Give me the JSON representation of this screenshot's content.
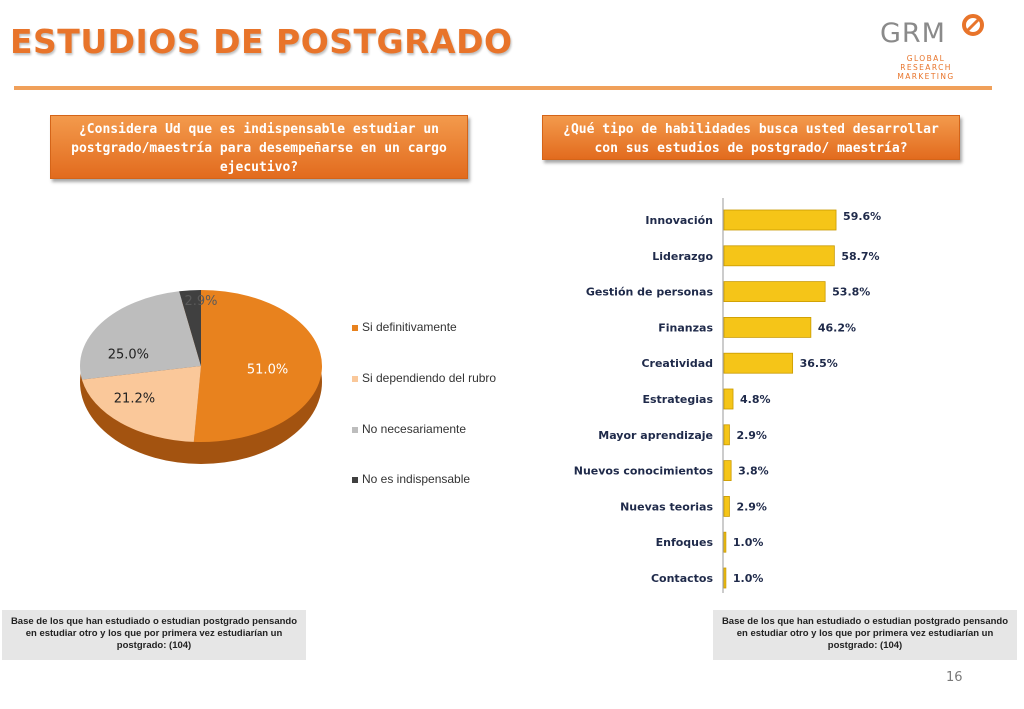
{
  "header": {
    "title": "ESTUDIOS DE POSTGRADO",
    "logo_name": "GRM",
    "logo_sub": "GLOBAL RESEARCH MARKETING"
  },
  "left": {
    "question": "¿Considera Ud que es indispensable estudiar un postgrado/maestría para desempeñarse en un cargo ejecutivo?",
    "base_note": "Base de los que han estudiado o estudian postgrado pensando en estudiar otro y los que por primera vez estudiarían un postgrado: (104)"
  },
  "right": {
    "question": "¿Qué tipo de habilidades busca usted desarrollar con sus estudios de postgrado/ maestría?",
    "base_note": "Base de los que han estudiado o estudian postgrado pensando en estudiar otro y los que por primera vez estudiarían un postgrado: (104)"
  },
  "page_number": "16",
  "chart_data": [
    {
      "type": "pie",
      "categories": [
        "Si definitivamente",
        "Si dependiendo del rubro",
        "No necesariamente",
        "No es indispensable"
      ],
      "values": [
        51.0,
        21.2,
        25.0,
        2.9
      ],
      "labels": [
        "51.0%",
        "21.2%",
        "25.0%",
        "2.9%"
      ],
      "colors": [
        "#e8821e",
        "#fac89a",
        "#bdbdbd",
        "#404040"
      ],
      "legend": "right"
    },
    {
      "type": "bar",
      "orientation": "horizontal",
      "categories": [
        "Innovación",
        "Liderazgo",
        "Gestión de personas",
        "Finanzas",
        "Creatividad",
        "Estrategias",
        "Mayor aprendizaje",
        "Nuevos conocimientos",
        "Nuevas teorias",
        "Enfoques",
        "Contactos"
      ],
      "values": [
        59.6,
        58.7,
        53.8,
        46.2,
        36.5,
        4.8,
        2.9,
        3.8,
        2.9,
        1.0,
        1.0
      ],
      "labels": [
        "59.6%",
        "58.7%",
        "53.8%",
        "46.2%",
        "36.5%",
        "4.8%",
        "2.9%",
        "3.8%",
        "2.9%",
        "1.0%",
        "1.0%"
      ],
      "color": "#f5c518"
    }
  ]
}
